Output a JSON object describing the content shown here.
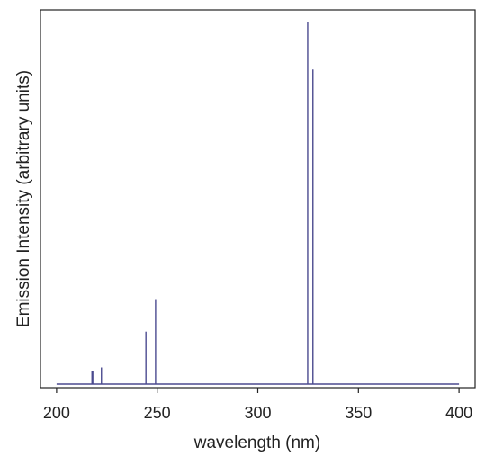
{
  "chart_data": {
    "type": "line",
    "xlabel": "wavelength (nm)",
    "ylabel": "Emission Intensity (arbitrary units)",
    "xlim": [
      192,
      408
    ],
    "ylim": [
      0,
      100
    ],
    "x_ticks": [
      200,
      250,
      300,
      350,
      400
    ],
    "y_ticks_shown": false,
    "grid": false,
    "legend": "none",
    "baseline": {
      "x_start": 200,
      "x_end": 400,
      "value": 0
    },
    "series": [
      {
        "color": "#4b4a8f",
        "peaks": [
          {
            "x": 217.6,
            "y": 3.5
          },
          {
            "x": 218.0,
            "y": 3.5
          },
          {
            "x": 222.3,
            "y": 4.6
          },
          {
            "x": 244.4,
            "y": 14.5
          },
          {
            "x": 249.2,
            "y": 23.5
          },
          {
            "x": 324.8,
            "y": 100
          },
          {
            "x": 327.4,
            "y": 87
          }
        ]
      }
    ]
  }
}
